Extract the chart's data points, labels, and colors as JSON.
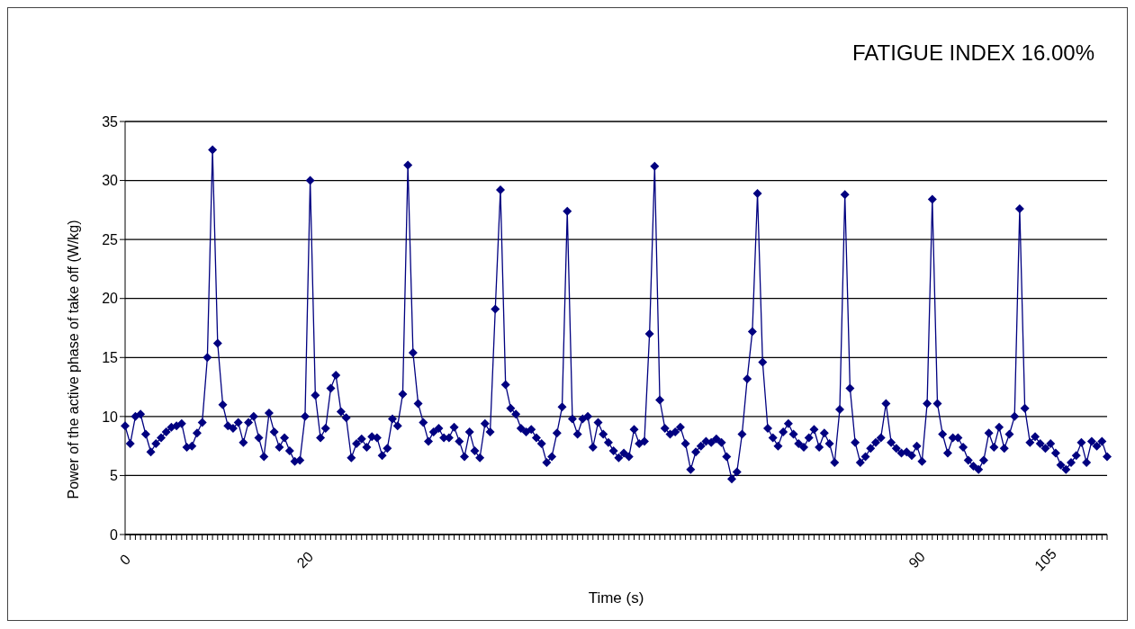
{
  "chart_data": {
    "type": "line",
    "title": "FATIGUE INDEX 16.00%",
    "xlabel": "Time (s)",
    "ylabel": "Power of the active phase of take off (W/kg)",
    "categories": [
      "0",
      null,
      null,
      null,
      null,
      null,
      null,
      null,
      null,
      null,
      null,
      null,
      null,
      null,
      null,
      null,
      null,
      null,
      null,
      null,
      null,
      null,
      null,
      null,
      null,
      null,
      null,
      null,
      null,
      null,
      null,
      null,
      null,
      null,
      null,
      "20",
      null,
      null,
      null,
      null,
      null,
      null,
      null,
      null,
      null,
      null,
      null,
      null,
      null,
      null,
      null,
      null,
      null,
      null,
      null,
      null,
      null,
      null,
      null,
      null,
      null,
      null,
      null,
      null,
      null,
      null,
      null,
      null,
      null,
      null,
      null,
      null,
      null,
      null,
      null,
      null,
      null,
      null,
      null,
      null,
      null,
      null,
      null,
      null,
      null,
      null,
      null,
      null,
      null,
      null,
      null,
      null,
      null,
      null,
      null,
      null,
      null,
      null,
      null,
      null,
      null,
      null,
      null,
      null,
      null,
      null,
      null,
      null,
      null,
      null,
      null,
      null,
      null,
      null,
      null,
      null,
      null,
      null,
      null,
      null,
      null,
      null,
      null,
      null,
      null,
      null,
      null,
      null,
      null,
      null,
      null,
      null,
      null,
      null,
      null,
      null,
      null,
      null,
      null,
      null,
      null,
      null,
      null,
      null,
      null,
      null,
      null,
      null,
      null,
      null,
      null,
      null,
      null,
      null,
      "90",
      null,
      null,
      null,
      null,
      null,
      null,
      null,
      null,
      null,
      null,
      null,
      null,
      null,
      null,
      null,
      null,
      null,
      null,
      null,
      null,
      null,
      null,
      null,
      null,
      "105",
      null,
      null,
      null,
      null,
      null,
      null,
      null,
      null,
      null,
      null,
      null,
      null
    ],
    "series": [
      {
        "color": "#000080",
        "values": [
          9.2,
          7.7,
          10.0,
          10.2,
          8.5,
          7.0,
          7.7,
          8.2,
          8.7,
          9.1,
          9.2,
          9.4,
          7.4,
          7.5,
          8.6,
          9.5,
          15.0,
          32.6,
          16.2,
          11.0,
          9.2,
          9.0,
          9.5,
          7.8,
          9.5,
          10.0,
          8.2,
          6.6,
          10.3,
          8.7,
          7.4,
          8.2,
          7.1,
          6.2,
          6.3,
          10.0,
          30.0,
          11.8,
          8.2,
          9.0,
          12.4,
          13.5,
          10.4,
          9.9,
          6.5,
          7.7,
          8.1,
          7.4,
          8.3,
          8.2,
          6.7,
          7.3,
          9.8,
          9.2,
          11.9,
          31.3,
          15.4,
          11.1,
          9.5,
          7.9,
          8.7,
          9.0,
          8.2,
          8.2,
          9.1,
          7.9,
          6.6,
          8.7,
          7.1,
          6.5,
          9.4,
          8.7,
          19.1,
          29.2,
          12.7,
          10.7,
          10.2,
          9.0,
          8.7,
          8.9,
          8.2,
          7.7,
          6.1,
          6.6,
          8.6,
          10.8,
          27.4,
          9.8,
          8.5,
          9.8,
          10.0,
          7.4,
          9.5,
          8.5,
          7.8,
          7.1,
          6.5,
          6.9,
          6.6,
          8.9,
          7.7,
          7.9,
          17.0,
          31.2,
          11.4,
          9.0,
          8.5,
          8.7,
          9.1,
          7.7,
          5.5,
          7.0,
          7.5,
          7.9,
          7.8,
          8.1,
          7.8,
          6.6,
          4.7,
          5.3,
          8.5,
          13.2,
          17.2,
          28.9,
          14.6,
          9.0,
          8.2,
          7.5,
          8.7,
          9.4,
          8.5,
          7.7,
          7.4,
          8.2,
          8.9,
          7.4,
          8.6,
          7.7,
          6.1,
          10.6,
          28.8,
          12.4,
          7.8,
          6.1,
          6.6,
          7.3,
          7.8,
          8.2,
          11.1,
          7.8,
          7.3,
          6.9,
          7.0,
          6.7,
          7.5,
          6.2,
          11.1,
          28.4,
          11.1,
          8.5,
          6.9,
          8.2,
          8.2,
          7.4,
          6.3,
          5.8,
          5.5,
          6.3,
          8.6,
          7.4,
          9.1,
          7.3,
          8.5,
          10.0,
          27.6,
          10.7,
          7.8,
          8.3,
          7.7,
          7.3,
          7.7,
          6.9,
          5.9,
          5.5,
          6.1,
          6.7,
          7.8,
          6.1,
          7.9,
          7.5,
          7.9,
          6.6
        ]
      }
    ],
    "ylim": [
      0,
      35
    ],
    "yticks": [
      0,
      5,
      10,
      15,
      20,
      25,
      30,
      35
    ],
    "grid": "y",
    "legend": false,
    "marker": "diamond",
    "line_style": "solid"
  }
}
